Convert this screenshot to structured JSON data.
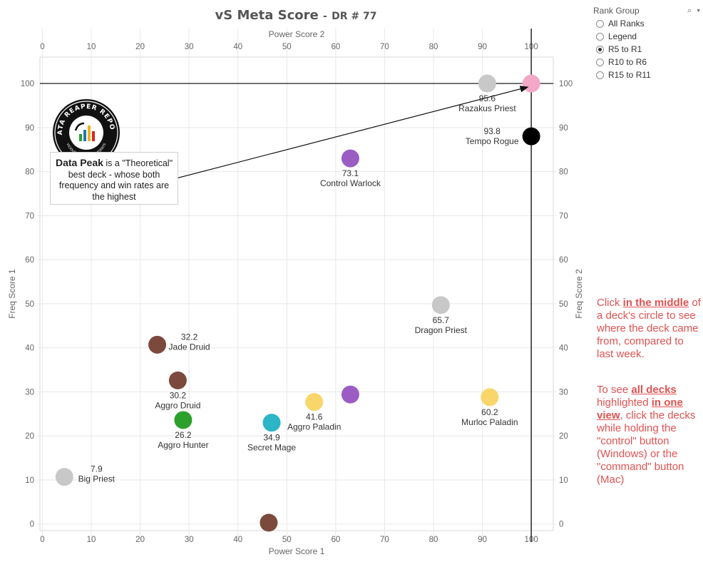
{
  "title": "vS Meta Score",
  "subtitle": "DR # 77",
  "chart_data": {
    "type": "scatter",
    "x_axis_bottom": {
      "label": "Power Score 1",
      "range": [
        -0.5,
        104.5
      ],
      "ticks": [
        0,
        10,
        20,
        30,
        40,
        50,
        60,
        70,
        80,
        90,
        100
      ]
    },
    "x_axis_top": {
      "label": "Power Score 2",
      "range": [
        -0.5,
        104.5
      ],
      "ticks": [
        0,
        10,
        20,
        30,
        40,
        50,
        60,
        70,
        80,
        90,
        100
      ]
    },
    "y_axis_left": {
      "label": "Freq Score 1",
      "range": [
        -1.5,
        106
      ],
      "ticks": [
        0,
        10,
        20,
        30,
        40,
        50,
        60,
        70,
        80,
        90,
        100
      ]
    },
    "y_axis_right": {
      "label": "Freq Score 2",
      "range": [
        -1.5,
        106
      ],
      "ticks": [
        0,
        10,
        20,
        30,
        40,
        50,
        60,
        70,
        80,
        90,
        100
      ]
    },
    "reference_lines": {
      "x": 100,
      "y": 100
    },
    "points": [
      {
        "name": "Razakus Priest",
        "x": 91,
        "y": 100,
        "score": "95.6",
        "color": "#c8c8c8",
        "label_pos": "below"
      },
      {
        "name": "",
        "x": 100,
        "y": 100,
        "score": "",
        "color": "#f4a8c8",
        "label_pos": "none"
      },
      {
        "name": "Tempo Rogue",
        "x": 100,
        "y": 88,
        "score": "93.8",
        "color": "#000000",
        "label_pos": "left"
      },
      {
        "name": "Control Warlock",
        "x": 63,
        "y": 83,
        "score": "73.1",
        "color": "#9b5cc4",
        "label_pos": "below"
      },
      {
        "name": "Dragon Priest",
        "x": 81.5,
        "y": 49.7,
        "score": "65.7",
        "color": "#c8c8c8",
        "label_pos": "below"
      },
      {
        "name": "Jade Druid",
        "x": 23.5,
        "y": 40.7,
        "score": "32.2",
        "color": "#7b4a3c",
        "label_pos": "right"
      },
      {
        "name": "Aggro Druid",
        "x": 27.7,
        "y": 32.6,
        "score": "30.2",
        "color": "#7b4a3c",
        "label_pos": "below"
      },
      {
        "name": "Aggro Paladin",
        "x": 55.6,
        "y": 27.7,
        "score": "41.6",
        "color": "#f9d66b",
        "label_pos": "below"
      },
      {
        "name": "",
        "x": 63,
        "y": 29.4,
        "score": "",
        "color": "#9b5cc4",
        "label_pos": "none"
      },
      {
        "name": "Murloc Paladin",
        "x": 91.5,
        "y": 28.8,
        "score": "60.2",
        "color": "#f9d66b",
        "label_pos": "below"
      },
      {
        "name": "Aggro Hunter",
        "x": 28.8,
        "y": 23.6,
        "score": "26.2",
        "color": "#2ca02c",
        "label_pos": "below"
      },
      {
        "name": "Secret Mage",
        "x": 46.9,
        "y": 23,
        "score": "34.9",
        "color": "#2bb5c7",
        "label_pos": "below"
      },
      {
        "name": "Big Priest",
        "x": 4.5,
        "y": 10.7,
        "score": "7.9",
        "color": "#c8c8c8",
        "label_pos": "right"
      },
      {
        "name": "",
        "x": 46.3,
        "y": 0.3,
        "score": "",
        "color": "#7b4a3c",
        "label_pos": "none"
      }
    ]
  },
  "annotation": {
    "bold": "Data Peak",
    "text": "is a \"Theoretical\" best deck - whose both frequency and win rates are the highest",
    "arrow_from": [
      27.5,
      78.5
    ],
    "arrow_to": [
      99.3,
      99.2
    ]
  },
  "logo": {
    "text_top": "DATA REAPER REPORT",
    "text_bottom": "VICIOUS SYNDICATE PRESENTS"
  },
  "filter": {
    "title": "Rank Group",
    "tools": "⌕ ▾",
    "options": [
      "All Ranks",
      "Legend",
      "R5 to R1",
      "R10 to R6",
      "R15 to R11"
    ],
    "selected": "R5 to R1"
  },
  "note1": {
    "text_a": "Click ",
    "bold": "in the middle",
    "text_b": " of a deck's circle to see where the deck came from, compared to last week."
  },
  "note2": {
    "text_a": "To see ",
    "bold1": "all decks ",
    "text_b": " highlighted ",
    "bold2": "in one view",
    "text_c": ", click the decks while holding the \"control\" button (Windows) or the \"command\" button (Mac)"
  },
  "colors": {
    "grid": "#e8e8e8",
    "axis_text": "#666666",
    "ref_line": "#333333",
    "note": "#e05252"
  }
}
